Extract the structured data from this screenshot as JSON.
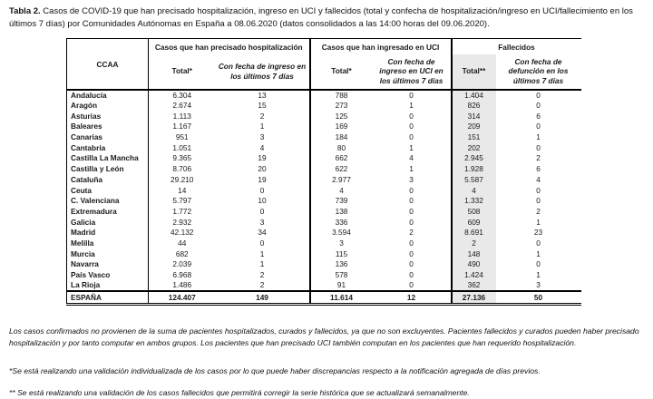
{
  "title": {
    "label": "Tabla 2.",
    "text": " Casos de COVID-19 que han precisado hospitalización, ingreso en UCI y fallecidos (total y confecha de hospitalización/ingreso en UCI/fallecimiento en los últimos 7 días) por Comunidades Autónomas en España a 08.06.2020 (datos consolidados a las 14:00 horas del 09.06.2020)."
  },
  "table": {
    "header": {
      "ccaa": "CCAA",
      "groups": [
        {
          "title": "Casos que han precisado hospitalización",
          "sub": [
            "Total*",
            "Con fecha de ingreso en los últimos 7 días"
          ]
        },
        {
          "title": "Casos que han ingresado en UCI",
          "sub": [
            "Total*",
            "Con fecha de ingreso en UCI en los últimos 7 días"
          ]
        },
        {
          "title": "Fallecidos",
          "sub": [
            "Total**",
            "Con fecha de defunción en los últimos 7 días"
          ]
        }
      ]
    },
    "rows": [
      {
        "ccaa": "Andalucía",
        "values": [
          "6.304",
          "13",
          "788",
          "0",
          "1.404",
          "0"
        ]
      },
      {
        "ccaa": "Aragón",
        "values": [
          "2.674",
          "15",
          "273",
          "1",
          "826",
          "0"
        ]
      },
      {
        "ccaa": "Asturias",
        "values": [
          "1.113",
          "2",
          "125",
          "0",
          "314",
          "6"
        ]
      },
      {
        "ccaa": "Baleares",
        "values": [
          "1.167",
          "1",
          "169",
          "0",
          "209",
          "0"
        ]
      },
      {
        "ccaa": "Canarias",
        "values": [
          "951",
          "3",
          "184",
          "0",
          "151",
          "1"
        ]
      },
      {
        "ccaa": "Cantabria",
        "values": [
          "1.051",
          "4",
          "80",
          "1",
          "202",
          "0"
        ]
      },
      {
        "ccaa": "Castilla La Mancha",
        "values": [
          "9.365",
          "19",
          "662",
          "4",
          "2.945",
          "2"
        ]
      },
      {
        "ccaa": "Castilla y León",
        "values": [
          "8.706",
          "20",
          "622",
          "1",
          "1.928",
          "6"
        ]
      },
      {
        "ccaa": "Cataluña",
        "values": [
          "29.210",
          "19",
          "2.977",
          "3",
          "5.587",
          "4"
        ]
      },
      {
        "ccaa": "Ceuta",
        "values": [
          "14",
          "0",
          "4",
          "0",
          "4",
          "0"
        ]
      },
      {
        "ccaa": "C. Valenciana",
        "values": [
          "5.797",
          "10",
          "739",
          "0",
          "1.332",
          "0"
        ]
      },
      {
        "ccaa": "Extremadura",
        "values": [
          "1.772",
          "0",
          "138",
          "0",
          "508",
          "2"
        ]
      },
      {
        "ccaa": "Galicia",
        "values": [
          "2.932",
          "3",
          "336",
          "0",
          "609",
          "1"
        ]
      },
      {
        "ccaa": "Madrid",
        "values": [
          "42.132",
          "34",
          "3.594",
          "2",
          "8.691",
          "23"
        ]
      },
      {
        "ccaa": "Melilla",
        "values": [
          "44",
          "0",
          "3",
          "0",
          "2",
          "0"
        ]
      },
      {
        "ccaa": "Murcia",
        "values": [
          "682",
          "1",
          "115",
          "0",
          "148",
          "1"
        ]
      },
      {
        "ccaa": "Navarra",
        "values": [
          "2.039",
          "1",
          "136",
          "0",
          "490",
          "0"
        ]
      },
      {
        "ccaa": "País Vasco",
        "values": [
          "6.968",
          "2",
          "578",
          "0",
          "1.424",
          "1"
        ]
      },
      {
        "ccaa": "La Rioja",
        "values": [
          "1.486",
          "2",
          "91",
          "0",
          "362",
          "3"
        ]
      }
    ],
    "total_row": {
      "ccaa": "ESPAÑA",
      "values": [
        "124.407",
        "149",
        "11.614",
        "12",
        "27.136",
        "50"
      ]
    }
  },
  "footnotes": [
    "Los casos confirmados no provienen de la suma de pacientes hospitalizados, curados y fallecidos, ya que no son excluyentes. Pacientes fallecidos y curados pueden haber precisado hospitalización y por tanto computar en ambos grupos. Los pacientes que han precisado UCI también computan en los pacientes que han requerido hospitalización.",
    "*Se está realizando una validación individualizada de los casos por lo que puede haber discrepancias respecto a la notificación agregada de días previos.",
    "** Se está realizando una validación de los casos fallecidos que permitirá corregir la serie histórica que se actualizará semanalmente."
  ],
  "colors": {
    "shaded_column": "#e9e9e9",
    "border": "#000000",
    "text": "#1a1a1a"
  }
}
